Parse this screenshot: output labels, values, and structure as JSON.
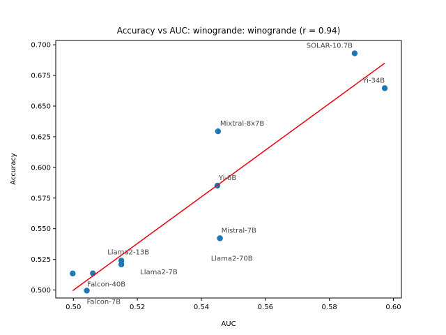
{
  "chart_data": {
    "type": "scatter",
    "title": "Accuracy vs AUC: winogrande: winogrande (r = 0.94)",
    "xlabel": "AUC",
    "ylabel": "Accuracy",
    "xlim": [
      0.4945,
      0.6025
    ],
    "ylim": [
      0.4935,
      0.7035
    ],
    "xticks": [
      0.5,
      0.52,
      0.54,
      0.56,
      0.58,
      0.6
    ],
    "xtick_labels": [
      "0.50",
      "0.52",
      "0.54",
      "0.56",
      "0.58",
      "0.60"
    ],
    "yticks": [
      0.5,
      0.525,
      0.55,
      0.575,
      0.6,
      0.625,
      0.65,
      0.675,
      0.7
    ],
    "ytick_labels": [
      "0.500",
      "0.525",
      "0.550",
      "0.575",
      "0.600",
      "0.625",
      "0.650",
      "0.675",
      "0.700"
    ],
    "grid": false,
    "point_color": "#1f77b4",
    "fit_color": "#e8000b",
    "points": [
      {
        "x": 0.4998,
        "y": 0.5135,
        "label": "",
        "anchor": "start"
      },
      {
        "x": 0.5042,
        "y": 0.4995,
        "label": "Falcon-7B",
        "anchor": "start"
      },
      {
        "x": 0.5061,
        "y": 0.5136,
        "label": "Falcon-40B",
        "anchor": "start"
      },
      {
        "x": 0.515,
        "y": 0.524,
        "label": "Llama2-13B",
        "anchor": "middle"
      },
      {
        "x": 0.515,
        "y": 0.5209,
        "label": "Llama2-7B",
        "anchor": "start"
      },
      {
        "x": 0.545,
        "y": 0.5851,
        "label": "Yi-6B",
        "anchor": "start"
      },
      {
        "x": 0.5452,
        "y": 0.6294,
        "label": "Mixtral-8x7B",
        "anchor": "start"
      },
      {
        "x": 0.5458,
        "y": 0.5422,
        "label": "Mistral-7B",
        "anchor": "start"
      },
      {
        "x": 0.5458,
        "y": 0.5422,
        "label": "Llama2-70B",
        "anchor": "end"
      },
      {
        "x": 0.5879,
        "y": 0.693,
        "label": "SOLAR-10.7B",
        "anchor": "end"
      },
      {
        "x": 0.5973,
        "y": 0.6646,
        "label": "Yi-34B",
        "anchor": "end"
      }
    ],
    "fit_line": {
      "x": [
        0.4998,
        0.5973
      ],
      "y": [
        0.4995,
        0.685
      ]
    }
  }
}
